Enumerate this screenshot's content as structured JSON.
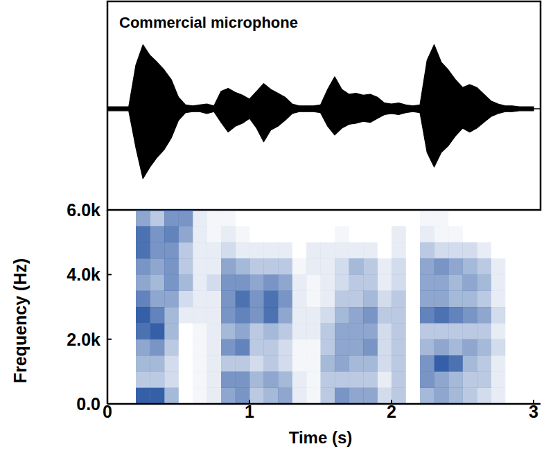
{
  "chart_data": [
    {
      "type": "area",
      "title": "Commercial microphone",
      "color": "#000000",
      "tick_labels": false,
      "xlim": [
        0,
        3
      ],
      "ylim": [
        -1,
        1
      ],
      "x": [
        0,
        0.05,
        0.1,
        0.15,
        0.2,
        0.25,
        0.3,
        0.35,
        0.4,
        0.45,
        0.5,
        0.55,
        0.6,
        0.65,
        0.7,
        0.75,
        0.8,
        0.85,
        0.9,
        0.95,
        1.0,
        1.05,
        1.1,
        1.15,
        1.2,
        1.25,
        1.3,
        1.35,
        1.4,
        1.45,
        1.5,
        1.55,
        1.6,
        1.65,
        1.7,
        1.75,
        1.8,
        1.85,
        1.9,
        1.95,
        2.0,
        2.05,
        2.1,
        2.15,
        2.2,
        2.25,
        2.3,
        2.35,
        2.4,
        2.45,
        2.5,
        2.55,
        2.6,
        2.65,
        2.7,
        2.75,
        2.8,
        2.85,
        2.9,
        2.95,
        3.0
      ],
      "series": [
        {
          "values": [
            0.02,
            0.02,
            0.02,
            0.02,
            0.45,
            0.66,
            0.55,
            0.48,
            0.4,
            0.3,
            0.12,
            0.04,
            0.03,
            0.04,
            0.05,
            0.03,
            0.18,
            0.21,
            0.17,
            0.14,
            0.1,
            0.18,
            0.26,
            0.2,
            0.16,
            0.12,
            0.05,
            0.03,
            0.03,
            0.03,
            0.04,
            0.2,
            0.33,
            0.2,
            0.15,
            0.16,
            0.14,
            0.15,
            0.12,
            0.06,
            0.05,
            0.06,
            0.04,
            0.03,
            0.04,
            0.5,
            0.66,
            0.48,
            0.4,
            0.3,
            0.22,
            0.25,
            0.22,
            0.15,
            0.08,
            0.05,
            0.03,
            0.03,
            0.02,
            0.02,
            0.02
          ]
        },
        {
          "values": [
            -0.02,
            -0.02,
            -0.02,
            -0.02,
            -0.4,
            -0.72,
            -0.6,
            -0.5,
            -0.42,
            -0.3,
            -0.12,
            -0.04,
            -0.03,
            -0.03,
            -0.05,
            -0.03,
            -0.14,
            -0.24,
            -0.18,
            -0.15,
            -0.1,
            -0.2,
            -0.34,
            -0.22,
            -0.18,
            -0.12,
            -0.05,
            -0.03,
            -0.03,
            -0.03,
            -0.04,
            -0.18,
            -0.27,
            -0.2,
            -0.16,
            -0.15,
            -0.13,
            -0.14,
            -0.1,
            -0.06,
            -0.05,
            -0.06,
            -0.04,
            -0.03,
            -0.04,
            -0.45,
            -0.6,
            -0.45,
            -0.38,
            -0.28,
            -0.2,
            -0.24,
            -0.2,
            -0.14,
            -0.08,
            -0.05,
            -0.03,
            -0.03,
            -0.02,
            -0.02,
            -0.02
          ]
        }
      ]
    },
    {
      "type": "heatmap",
      "x_label": "Time (s)",
      "y_label": "Frequency (Hz)",
      "color": "#1f4f9e",
      "xlim": [
        0,
        3
      ],
      "xticks": [
        0,
        1,
        2,
        3
      ],
      "ylim": [
        0,
        6000
      ],
      "yticks": [
        {
          "value": 0,
          "label": "0.0"
        },
        {
          "value": 2000,
          "label": "2.0k"
        },
        {
          "value": 4000,
          "label": "4.0k"
        },
        {
          "value": 6000,
          "label": "6.0k"
        }
      ],
      "x": [
        0.15,
        0.25,
        0.35,
        0.45,
        0.55,
        0.65,
        0.75,
        0.85,
        0.95,
        1.05,
        1.15,
        1.25,
        1.35,
        1.45,
        1.55,
        1.65,
        1.75,
        1.85,
        1.95,
        2.05,
        2.15,
        2.25,
        2.35,
        2.45,
        2.55,
        2.65,
        2.75,
        2.85,
        2.95
      ],
      "y": [
        250,
        750,
        1250,
        1750,
        2250,
        2750,
        3250,
        3750,
        4250,
        4750,
        5250,
        5750
      ],
      "cells": [
        [
          0,
          0,
          0,
          0,
          0,
          0,
          0,
          0,
          0,
          0,
          0,
          0
        ],
        [
          0.9,
          0.3,
          0.4,
          0.5,
          0.8,
          0.9,
          0.7,
          0.5,
          0.6,
          0.8,
          0.8,
          0.5
        ],
        [
          0.9,
          0.3,
          0.4,
          0.6,
          0.9,
          0.7,
          0.5,
          0.4,
          0.5,
          0.6,
          0.6,
          0.3
        ],
        [
          0.4,
          0.2,
          0.2,
          0.3,
          0.4,
          0.4,
          0.5,
          0.6,
          0.6,
          0.6,
          0.7,
          0.6
        ],
        [
          0,
          0,
          0,
          0,
          0,
          0.1,
          0.2,
          0.4,
          0.3,
          0.3,
          0.5,
          0.6
        ],
        [
          0.05,
          0.05,
          0.05,
          0.05,
          0.05,
          0.1,
          0.1,
          0.1,
          0.1,
          0.1,
          0.1,
          0.1
        ],
        [
          0.1,
          0.1,
          0.1,
          0.1,
          0.1,
          0.1,
          0.1,
          0.2,
          0.1,
          0.1,
          0.05,
          0.05
        ],
        [
          0.5,
          0.6,
          0.3,
          0.6,
          0.4,
          0.6,
          0.6,
          0.6,
          0.5,
          0.2,
          0.1,
          0.05
        ],
        [
          0.6,
          0.6,
          0.3,
          0.7,
          0.5,
          0.7,
          0.8,
          0.6,
          0.4,
          0.1,
          0.05,
          0
        ],
        [
          0.3,
          0.4,
          0.2,
          0.3,
          0.3,
          0.6,
          0.6,
          0.5,
          0.3,
          0.1,
          0,
          0
        ],
        [
          0.4,
          0.5,
          0.3,
          0.3,
          0.4,
          0.8,
          0.8,
          0.6,
          0.3,
          0.1,
          0,
          0
        ],
        [
          0.5,
          0.4,
          0.2,
          0.2,
          0.3,
          0.5,
          0.6,
          0.5,
          0.3,
          0.1,
          0,
          0
        ],
        [
          0.1,
          0.1,
          0.05,
          0.05,
          0.1,
          0.1,
          0.1,
          0.1,
          0.05,
          0,
          0,
          0
        ],
        [
          0.05,
          0.05,
          0.05,
          0.05,
          0.1,
          0.1,
          0.05,
          0.05,
          0.1,
          0.1,
          0,
          0
        ],
        [
          0.3,
          0.3,
          0.4,
          0.3,
          0.3,
          0.2,
          0.1,
          0.1,
          0.1,
          0.1,
          0,
          0
        ],
        [
          0.6,
          0.3,
          0.5,
          0.5,
          0.5,
          0.4,
          0.3,
          0.2,
          0.2,
          0.1,
          0.05,
          0
        ],
        [
          0.5,
          0.3,
          0.4,
          0.5,
          0.5,
          0.5,
          0.3,
          0.3,
          0.4,
          0.1,
          0,
          0
        ],
        [
          0.5,
          0.3,
          0.4,
          0.6,
          0.5,
          0.6,
          0.4,
          0.3,
          0.3,
          0.1,
          0,
          0
        ],
        [
          0.2,
          0.1,
          0.2,
          0.2,
          0.2,
          0.3,
          0.2,
          0.1,
          0.1,
          0,
          0,
          0
        ],
        [
          0.3,
          0.3,
          0.3,
          0.3,
          0.3,
          0.3,
          0.3,
          0.2,
          0.2,
          0.1,
          0.1,
          0
        ],
        [
          0,
          0,
          0,
          0,
          0,
          0,
          0,
          0,
          0,
          0,
          0,
          0
        ],
        [
          0.4,
          0.6,
          0.6,
          0.4,
          0.3,
          0.7,
          0.5,
          0.5,
          0.5,
          0.3,
          0.1,
          0.05
        ],
        [
          0.5,
          0.5,
          0.9,
          0.5,
          0.3,
          0.8,
          0.5,
          0.5,
          0.6,
          0.2,
          0.05,
          0.05
        ],
        [
          0.4,
          0.4,
          0.8,
          0.4,
          0.3,
          0.7,
          0.4,
          0.4,
          0.5,
          0.2,
          0.05,
          0
        ],
        [
          0.3,
          0.3,
          0.4,
          0.5,
          0.3,
          0.6,
          0.4,
          0.5,
          0.4,
          0.2,
          0,
          0
        ],
        [
          0.2,
          0.3,
          0.3,
          0.4,
          0.3,
          0.5,
          0.3,
          0.4,
          0.3,
          0.1,
          0,
          0
        ],
        [
          0.1,
          0.1,
          0.1,
          0.2,
          0.1,
          0.2,
          0.1,
          0.1,
          0.1,
          0,
          0,
          0
        ],
        [
          0,
          0,
          0,
          0,
          0,
          0,
          0,
          0,
          0,
          0,
          0,
          0
        ],
        [
          0,
          0,
          0,
          0,
          0,
          0,
          0,
          0,
          0,
          0,
          0,
          0
        ]
      ]
    }
  ]
}
